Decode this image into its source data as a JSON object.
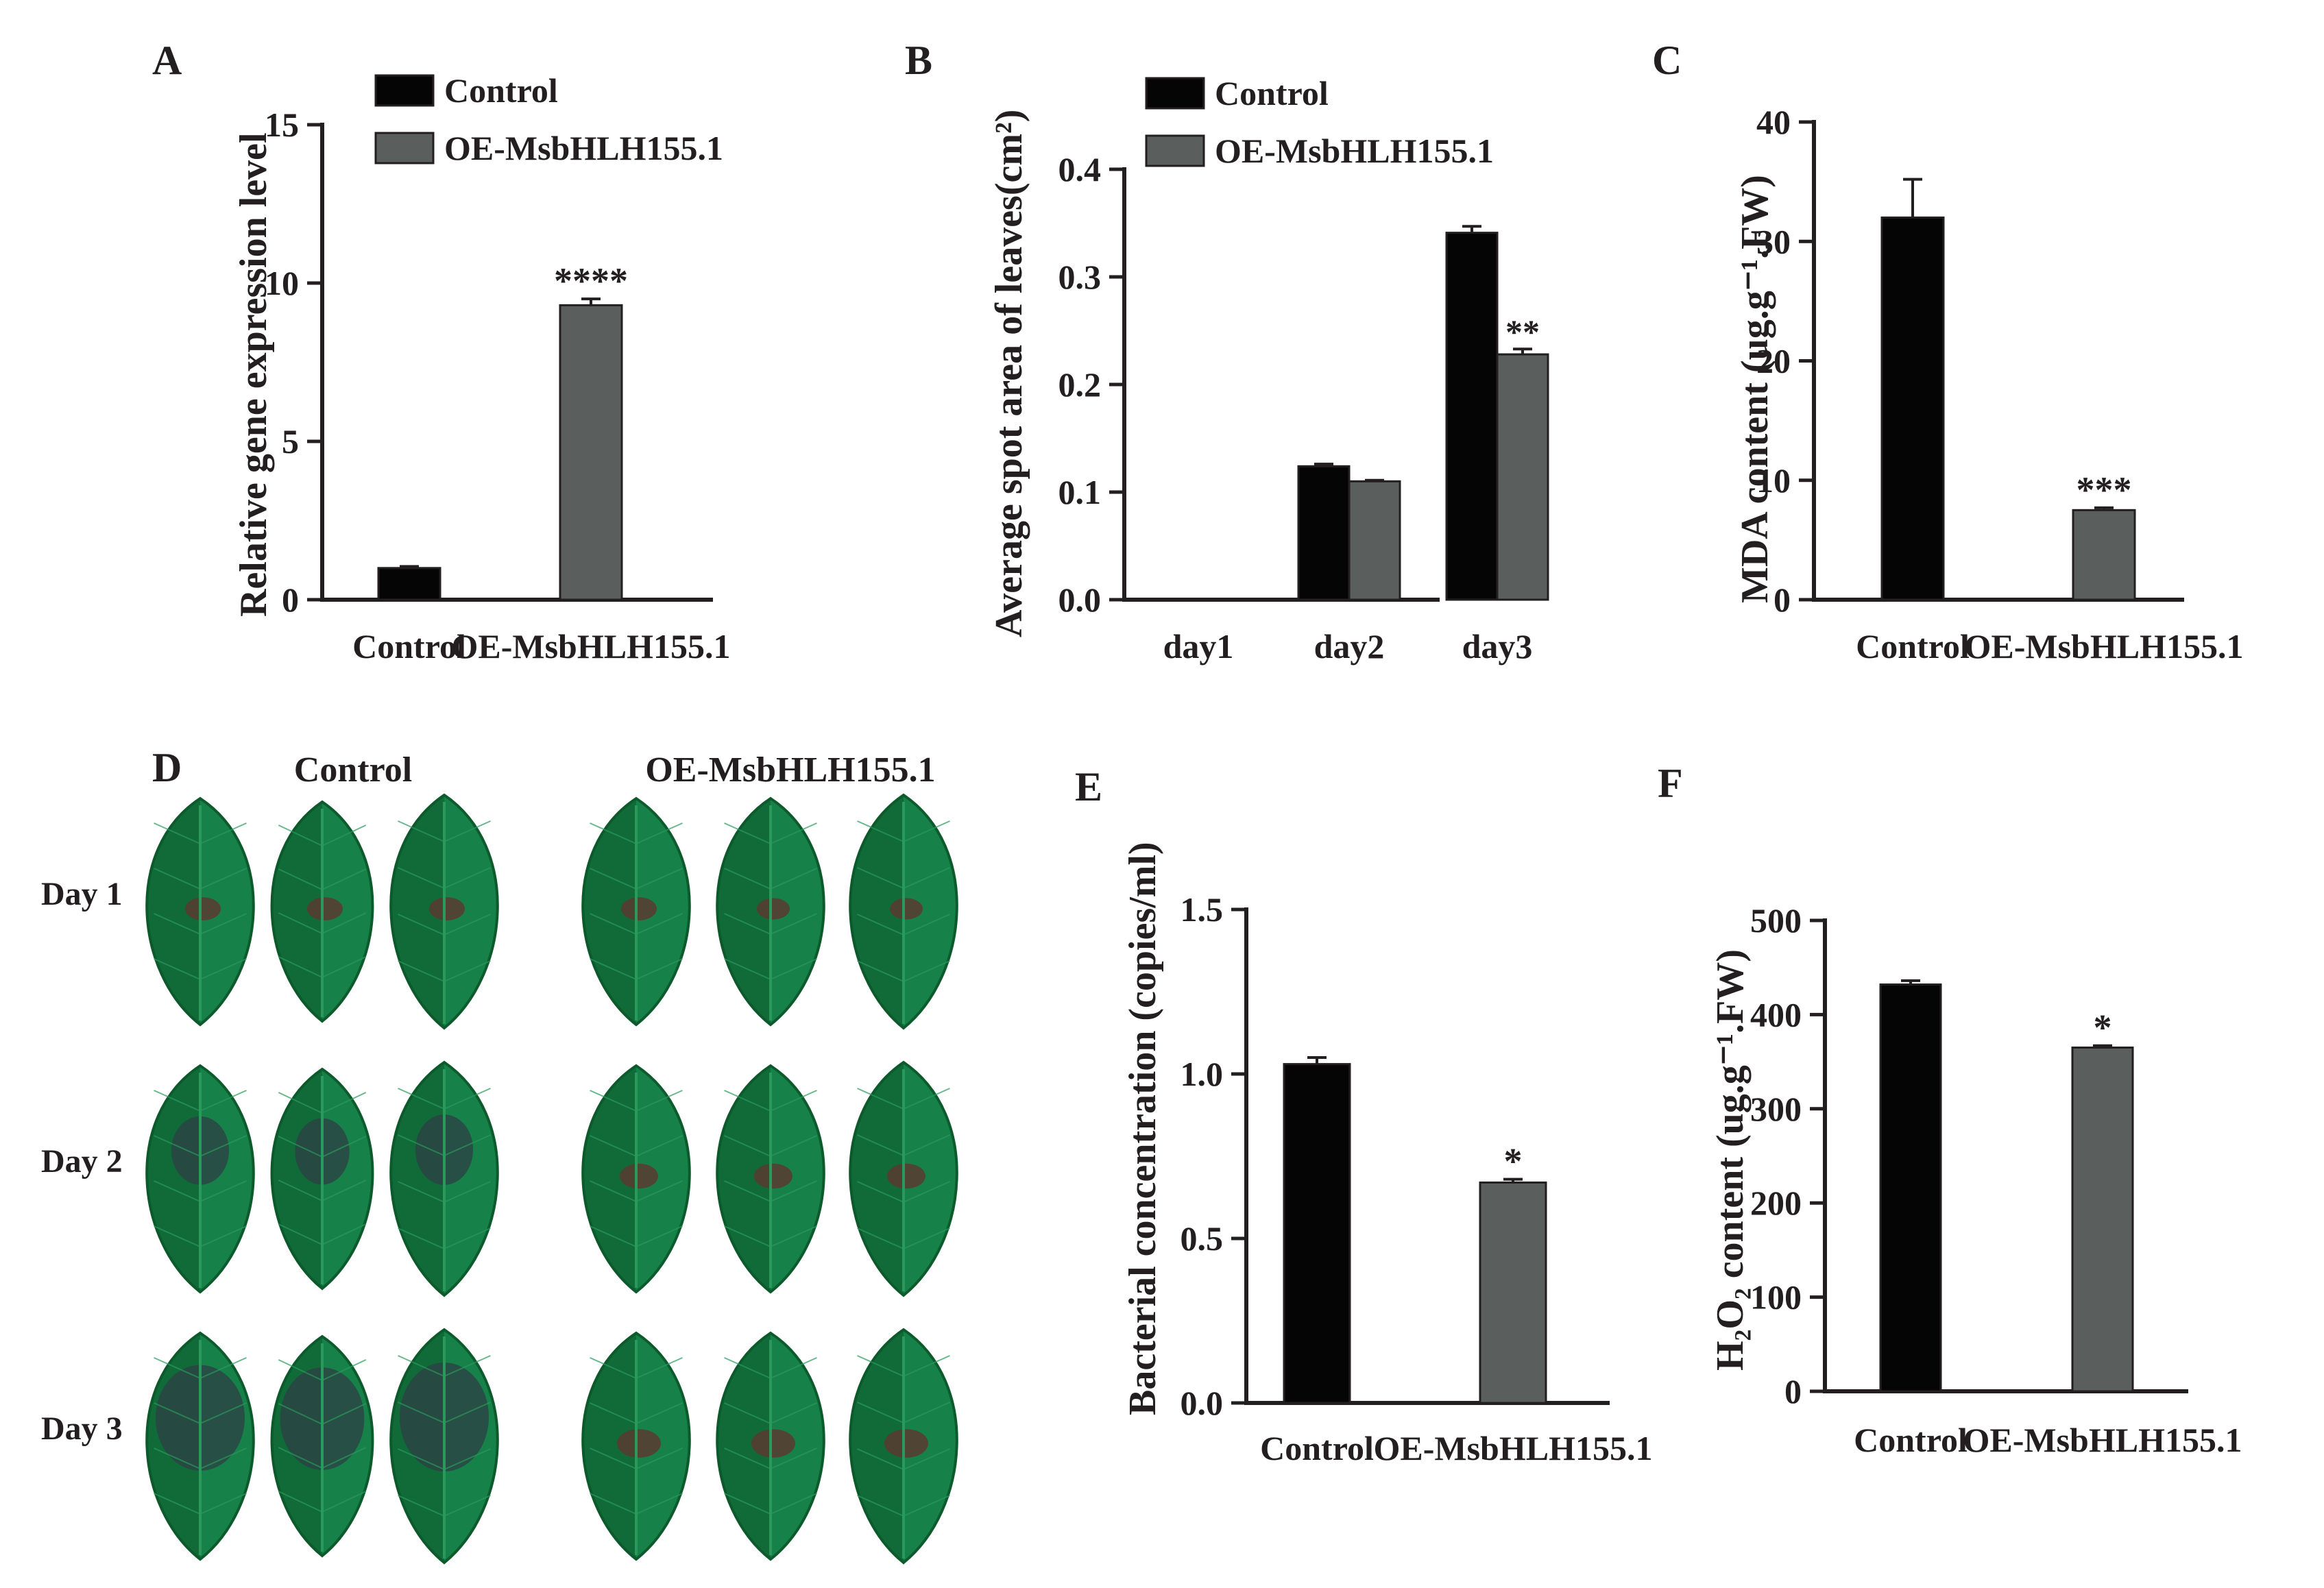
{
  "colors": {
    "control": "#050505",
    "oe": "#5a5f5d",
    "axis": "#231f20",
    "leaf_dark": "#0d5a2c",
    "leaf_mid": "#16824a",
    "leaf_light": "#2a9a5c",
    "lesion": "#5a3a30",
    "lesion_heavy": "#2e3d45"
  },
  "chart_data": [
    {
      "panel": "A",
      "type": "bar",
      "categories": [
        "Control",
        "OE-MsbHLH155.1"
      ],
      "values": [
        1.0,
        9.3
      ],
      "errors": [
        0.05,
        0.2
      ],
      "significance": [
        "",
        "****"
      ],
      "ylabel": "Relative gene expression level",
      "xlabel": "",
      "ylim": [
        0,
        15
      ],
      "yticks": [
        "0",
        "5",
        "10",
        "15"
      ],
      "legend": [
        "Control",
        "OE-MsbHLH155.1"
      ],
      "legend_position": "top-right"
    },
    {
      "panel": "B",
      "type": "bar",
      "categories": [
        "day1",
        "day2",
        "day3"
      ],
      "series": [
        {
          "name": "Control",
          "values": [
            0.0,
            0.124,
            0.341
          ],
          "errors": [
            0,
            0.002,
            0.006
          ]
        },
        {
          "name": "OE-MsbHLH155.1",
          "values": [
            0.0,
            0.11,
            0.228
          ],
          "errors": [
            0,
            0.001,
            0.005
          ]
        }
      ],
      "significance": [
        "",
        "",
        "**"
      ],
      "ylabel": "Average spot area of leaves(cm²)",
      "xlabel": "",
      "ylim": [
        0,
        0.4
      ],
      "yticks": [
        "0.0",
        "0.1",
        "0.2",
        "0.3",
        "0.4"
      ],
      "legend": [
        "Control",
        "OE-MsbHLH155.1"
      ],
      "legend_position": "top-right"
    },
    {
      "panel": "C",
      "type": "bar",
      "categories": [
        "Control",
        "OE-MsbHLH155.1"
      ],
      "values": [
        32.0,
        7.5
      ],
      "errors": [
        3.2,
        0.2
      ],
      "significance": [
        "",
        "***"
      ],
      "ylabel": "MDA content (ug.g⁻¹.FW)",
      "xlabel": "",
      "ylim": [
        0,
        40
      ],
      "yticks": [
        "0",
        "10",
        "20",
        "30",
        "40"
      ]
    },
    {
      "panel": "E",
      "type": "bar",
      "categories": [
        "Control",
        "OE-MsbHLH155.1"
      ],
      "values": [
        1.03,
        0.67
      ],
      "errors": [
        0.02,
        0.01
      ],
      "significance": [
        "",
        "*"
      ],
      "ylabel": "Bacterial concentration (copies/ml)",
      "xlabel": "",
      "ylim": [
        0,
        1.5
      ],
      "yticks": [
        "0.0",
        "0.5",
        "1.0",
        "1.5"
      ]
    },
    {
      "panel": "F",
      "type": "bar",
      "categories": [
        "Control",
        "OE-MsbHLH155.1"
      ],
      "values": [
        432,
        365
      ],
      "errors": [
        4,
        2
      ],
      "significance": [
        "",
        "*"
      ],
      "ylabel": "H₂O₂ content (ug.g⁻¹.FW)",
      "xlabel": "",
      "ylim": [
        0,
        500
      ],
      "yticks": [
        "0",
        "100",
        "200",
        "300",
        "400",
        "500"
      ]
    }
  ],
  "panel_d": {
    "label": "D",
    "column_headers": [
      "Control",
      "OE-MsbHLH155.1"
    ],
    "row_labels": [
      "Day 1",
      "Day 2",
      "Day 3"
    ],
    "lesion_severity": [
      [
        0.15,
        0.15,
        0.15,
        0.15,
        0.1,
        0.1
      ],
      [
        0.55,
        0.55,
        0.55,
        0.2,
        0.2,
        0.2
      ],
      [
        0.85,
        0.85,
        0.85,
        0.3,
        0.3,
        0.3
      ]
    ]
  }
}
